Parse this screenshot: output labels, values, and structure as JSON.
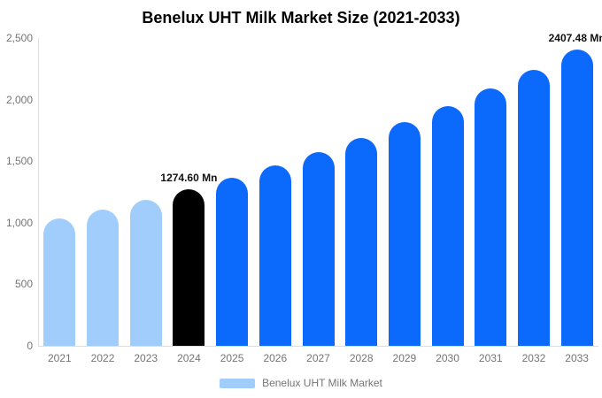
{
  "chart_data": {
    "type": "bar",
    "title": "Benelux UHT Milk Market Size (2021-2033)",
    "categories": [
      "2021",
      "2022",
      "2023",
      "2024",
      "2025",
      "2026",
      "2027",
      "2028",
      "2029",
      "2030",
      "2031",
      "2032",
      "2033"
    ],
    "values": [
      1031.24,
      1106.73,
      1187.74,
      1274.6,
      1367.9,
      1468.03,
      1575.49,
      1690.82,
      1814.59,
      1947.42,
      2089.97,
      2242.96,
      2407.48
    ],
    "point_colors": [
      "#A0CDFB",
      "#A0CDFB",
      "#A0CDFB",
      "#000000",
      "#0B69FB",
      "#0B69FB",
      "#0B69FB",
      "#0B69FB",
      "#0B69FB",
      "#0B69FB",
      "#0B69FB",
      "#0B69FB",
      "#0B69FB"
    ],
    "annotations": [
      {
        "category": "2024",
        "text": "1274.60 Mn"
      },
      {
        "category": "2033",
        "text": "2407.48 Mn"
      }
    ],
    "y_ticks": [
      {
        "value": 0,
        "label": "0"
      },
      {
        "value": 500,
        "label": "500"
      },
      {
        "value": 1000,
        "label": "1,000"
      },
      {
        "value": 1500,
        "label": "1,500"
      },
      {
        "value": 2000,
        "label": "2,000"
      },
      {
        "value": 2500,
        "label": "2,500"
      }
    ],
    "ylim": [
      0,
      2500
    ],
    "xlabel": "",
    "ylabel": "",
    "grid": false,
    "legend_position": "bottom"
  },
  "legend": {
    "label": "Benelux UHT Milk Market",
    "swatch_color": "#A0CDFB"
  },
  "colors": {
    "historical_bar": "#A0CDFB",
    "base_year_bar": "#000000",
    "forecast_bar": "#0B69FB",
    "axis_line": "#dddddd",
    "tick_text": "#757575",
    "title_text": "#000000"
  }
}
